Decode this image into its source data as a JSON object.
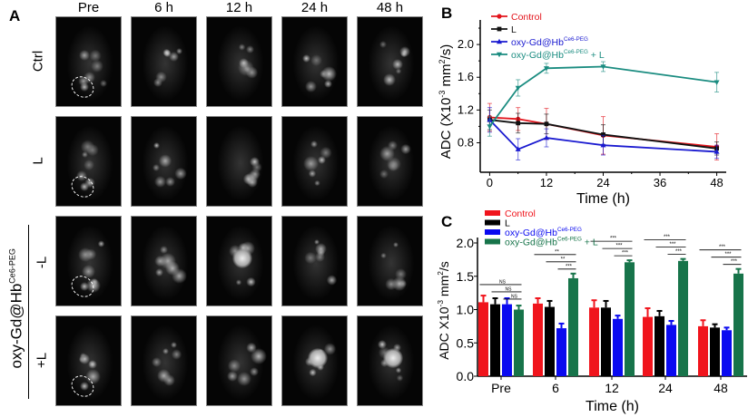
{
  "panels": {
    "a": "A",
    "b": "B",
    "c": "C"
  },
  "panel_a": {
    "columns": [
      "Pre",
      "6 h",
      "12 h",
      "24 h",
      "48 h"
    ],
    "rows": [
      "Ctrl",
      "L",
      "-L",
      "+L"
    ],
    "group_label": "oxy-Gd@Hb",
    "group_label_sup": "Ce6-PEG"
  },
  "chart_data": [
    {
      "type": "line",
      "xlabel": "Time (h)",
      "ylabel": "ADC (X10",
      "ylabel_sup": "-3",
      "ylabel_rest": " mm",
      "ylabel_sup2": "2",
      "ylabel_end": "/s)",
      "x": [
        0,
        6,
        12,
        24,
        48
      ],
      "xticks": [
        0,
        12,
        24,
        36,
        48
      ],
      "yticks": [
        0.8,
        1.2,
        1.6,
        2.0
      ],
      "xlim": [
        -2,
        50
      ],
      "ylim": [
        0.44,
        2.3
      ],
      "legend": "top-left",
      "series": [
        {
          "name": "Control",
          "color": "#e3141c",
          "marker": "circle",
          "values": [
            1.11,
            1.09,
            1.03,
            0.89,
            0.75
          ],
          "errors": [
            0.17,
            0.14,
            0.19,
            0.23,
            0.16
          ]
        },
        {
          "name": "L",
          "color": "#111111",
          "marker": "square",
          "values": [
            1.08,
            1.04,
            1.03,
            0.9,
            0.73
          ],
          "errors": [
            0.12,
            0.12,
            0.12,
            0.12,
            0.08
          ]
        },
        {
          "name": "oxy-Gd@Hb",
          "name_sup": "Ce6-PEG",
          "color": "#1a1ad0",
          "marker": "triangle-up",
          "values": [
            1.08,
            0.72,
            0.86,
            0.77,
            0.69
          ],
          "errors": [
            0.15,
            0.13,
            0.11,
            0.12,
            0.08
          ]
        },
        {
          "name": "oxy-Gd@Hb",
          "name_sup": "Ce6-PEG",
          "name_suffix": " + L",
          "color": "#1a8c80",
          "marker": "triangle-down",
          "values": [
            1.0,
            1.47,
            1.71,
            1.73,
            1.54
          ],
          "errors": [
            0.12,
            0.1,
            0.06,
            0.06,
            0.12
          ]
        }
      ]
    },
    {
      "type": "bar",
      "xlabel": "Time (h)",
      "ylabel": "ADC X10",
      "ylabel_sup": "-3",
      "ylabel_rest": " mm",
      "ylabel_sup2": "2",
      "ylabel_end": "/s",
      "categories": [
        "Pre",
        "6",
        "12",
        "24",
        "48"
      ],
      "yticks": [
        "0.0",
        "0.5",
        "1.0",
        "1.5",
        "2.0"
      ],
      "ylim": [
        0,
        2.0
      ],
      "legend": "top-left",
      "series": [
        {
          "name": "Control",
          "color": "#f0141c",
          "values": [
            1.11,
            1.09,
            1.03,
            0.89,
            0.75
          ],
          "errors": [
            0.1,
            0.08,
            0.11,
            0.13,
            0.09
          ]
        },
        {
          "name": "L",
          "color": "#000000",
          "values": [
            1.08,
            1.04,
            1.03,
            0.9,
            0.73
          ],
          "errors": [
            0.09,
            0.09,
            0.1,
            0.08,
            0.05
          ]
        },
        {
          "name": "oxy-Gd@Hb",
          "name_sup": "Ce6-PEG",
          "color": "#0a0af0",
          "values": [
            1.08,
            0.72,
            0.86,
            0.77,
            0.69
          ],
          "errors": [
            0.09,
            0.07,
            0.05,
            0.06,
            0.04
          ]
        },
        {
          "name": "oxy-Gd@Hb",
          "name_sup": "Ce6-PEG",
          "name_suffix": " + L",
          "color": "#17744a",
          "values": [
            1.0,
            1.47,
            1.71,
            1.73,
            1.54
          ],
          "errors": [
            0.06,
            0.07,
            0.03,
            0.03,
            0.07
          ]
        }
      ],
      "significance": [
        [
          "NS",
          "NS",
          "NS"
        ],
        [
          "**",
          "**",
          "***"
        ],
        [
          "***",
          "***",
          "***"
        ],
        [
          "***",
          "***",
          "***"
        ],
        [
          "***",
          "***",
          "***"
        ]
      ]
    }
  ]
}
